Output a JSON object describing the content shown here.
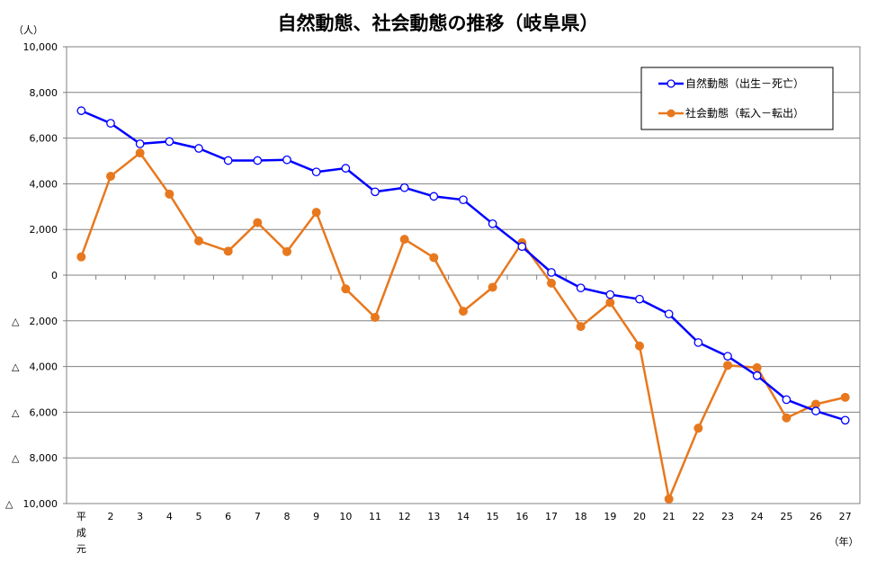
{
  "chart_data": {
    "type": "line",
    "title": "自然動態、社会動態の推移（岐阜県）",
    "y_unit": "（人）",
    "x_unit": "（年）",
    "x_first_label": [
      "平",
      "成",
      "元"
    ],
    "categories": [
      "平成元",
      "2",
      "3",
      "4",
      "5",
      "6",
      "7",
      "8",
      "9",
      "10",
      "11",
      "12",
      "13",
      "14",
      "15",
      "16",
      "17",
      "18",
      "19",
      "20",
      "21",
      "22",
      "23",
      "24",
      "25",
      "26",
      "27"
    ],
    "x_labels": [
      "",
      "2",
      "3",
      "4",
      "5",
      "6",
      "7",
      "8",
      "9",
      "10",
      "11",
      "12",
      "13",
      "14",
      "15",
      "16",
      "17",
      "18",
      "19",
      "20",
      "21",
      "22",
      "23",
      "24",
      "25",
      "26",
      "27"
    ],
    "ylim": [
      -10000,
      10000
    ],
    "y_ticks": [
      10000,
      8000,
      6000,
      4000,
      2000,
      0,
      -2000,
      -4000,
      -6000,
      -8000,
      -10000
    ],
    "y_tick_labels": [
      "10,000",
      "8,000",
      "6,000",
      "4,000",
      "2,000",
      "0",
      "△　2,000",
      "△　4,000",
      "△　6,000",
      "△　8,000",
      "△　10,000"
    ],
    "grid": true,
    "legend_position": "top-right",
    "series": [
      {
        "name": "自然動態（出生－死亡）",
        "color": "#0000ff",
        "marker": "open-circle",
        "values": [
          7200,
          6650,
          5750,
          5850,
          5550,
          5020,
          5020,
          5050,
          4520,
          4680,
          3650,
          3830,
          3450,
          3300,
          2250,
          1250,
          120,
          -560,
          -850,
          -1050,
          -1700,
          -2950,
          -3550,
          -4400,
          -5450,
          -5950,
          -6350
        ]
      },
      {
        "name": "社会動態（転入－転出）",
        "color": "#e8781e",
        "marker": "filled-circle",
        "values": [
          800,
          4330,
          5350,
          3550,
          1500,
          1050,
          2300,
          1030,
          2750,
          -600,
          -1850,
          1570,
          770,
          -1580,
          -530,
          1420,
          -350,
          -2250,
          -1200,
          -3100,
          -9800,
          -6700,
          -3950,
          -4050,
          -6250,
          -5650,
          -5350
        ]
      }
    ]
  }
}
